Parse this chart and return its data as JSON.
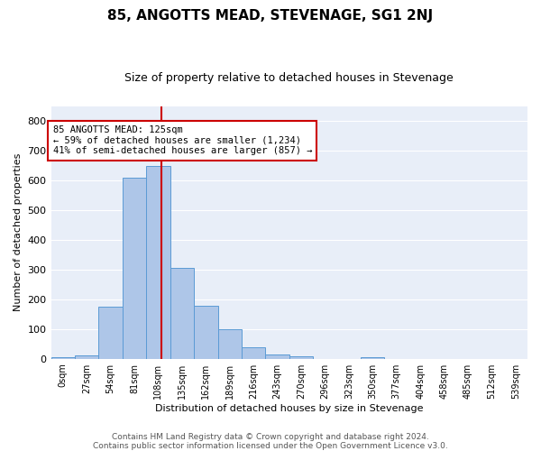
{
  "title": "85, ANGOTTS MEAD, STEVENAGE, SG1 2NJ",
  "subtitle": "Size of property relative to detached houses in Stevenage",
  "xlabel": "Distribution of detached houses by size in Stevenage",
  "ylabel": "Number of detached properties",
  "bin_labels": [
    "0sqm",
    "27sqm",
    "54sqm",
    "81sqm",
    "108sqm",
    "135sqm",
    "162sqm",
    "189sqm",
    "216sqm",
    "243sqm",
    "270sqm",
    "296sqm",
    "323sqm",
    "350sqm",
    "377sqm",
    "404sqm",
    "458sqm",
    "485sqm",
    "512sqm",
    "539sqm"
  ],
  "bin_values": [
    5,
    12,
    175,
    610,
    650,
    305,
    178,
    98,
    40,
    13,
    8,
    0,
    0,
    5,
    0,
    0,
    0,
    0,
    0,
    0
  ],
  "bar_color": "#aec6e8",
  "bar_edge_color": "#5b9bd5",
  "vline_x": 4.63,
  "annotation_text": "85 ANGOTTS MEAD: 125sqm\n← 59% of detached houses are smaller (1,234)\n41% of semi-detached houses are larger (857) →",
  "annotation_box_color": "#ffffff",
  "annotation_box_edge_color": "#cc0000",
  "vline_color": "#cc0000",
  "ylim": [
    0,
    850
  ],
  "yticks": [
    0,
    100,
    200,
    300,
    400,
    500,
    600,
    700,
    800
  ],
  "footer_line1": "Contains HM Land Registry data © Crown copyright and database right 2024.",
  "footer_line2": "Contains public sector information licensed under the Open Government Licence v3.0.",
  "plot_bg_color": "#e8eef8",
  "fig_bg_color": "#ffffff",
  "grid_color": "#ffffff",
  "title_fontsize": 11,
  "subtitle_fontsize": 9,
  "ylabel_fontsize": 8,
  "xlabel_fontsize": 8,
  "tick_fontsize": 8,
  "xtick_fontsize": 7
}
